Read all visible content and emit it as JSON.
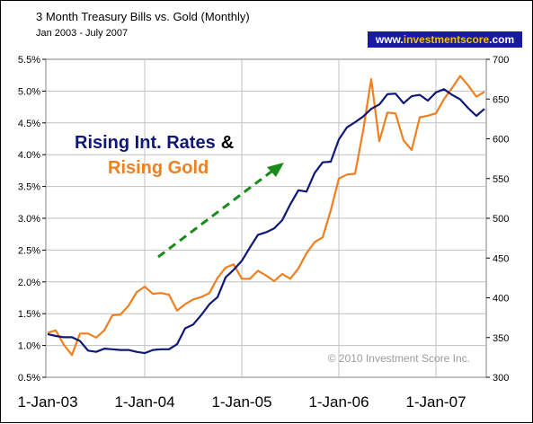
{
  "chart_data": {
    "type": "line",
    "title": "3 Month Treasury Bills vs. Gold (Monthly)",
    "subtitle": "Jan 2003 - July 2007",
    "source_badge": {
      "prefix": "www.",
      "brand": "investmentscore",
      "suffix": ".com"
    },
    "annotations": {
      "rates": "Rising Int. Rates",
      "amp": "&",
      "gold": "Rising Gold",
      "copyright": "© 2010 Investment Score Inc."
    },
    "colors": {
      "treasury": "#0e1877",
      "gold": "#f07f1f",
      "arrow": "#1a8a1a",
      "badge_bg": "#1a1aa0"
    },
    "x_tick_labels": [
      "1-Jan-03",
      "1-Jan-04",
      "1-Jan-05",
      "1-Jan-06",
      "1-Jan-07"
    ],
    "y_left": {
      "min": 0.5,
      "max": 5.5,
      "ticks": [
        "0.5%",
        "1.0%",
        "1.5%",
        "2.0%",
        "2.5%",
        "3.0%",
        "3.5%",
        "4.0%",
        "4.5%",
        "5.0%",
        "5.5%"
      ]
    },
    "y_right": {
      "min": 300,
      "max": 700,
      "ticks": [
        "300",
        "350",
        "400",
        "450",
        "500",
        "550",
        "600",
        "650",
        "700"
      ]
    },
    "grid": true,
    "legend": "none",
    "series": [
      {
        "axis": "left",
        "values": [
          1.18,
          1.15,
          1.13,
          1.13,
          1.07,
          0.92,
          0.9,
          0.95,
          0.94,
          0.93,
          0.93,
          0.9,
          0.88,
          0.93,
          0.94,
          0.94,
          1.02,
          1.27,
          1.33,
          1.48,
          1.65,
          1.76,
          2.07,
          2.19,
          2.33,
          2.54,
          2.74,
          2.78,
          2.84,
          2.97,
          3.22,
          3.44,
          3.42,
          3.71,
          3.88,
          3.89,
          4.24,
          4.43,
          4.51,
          4.6,
          4.72,
          4.79,
          4.95,
          4.96,
          4.81,
          4.92,
          4.94,
          4.85,
          4.98,
          5.03,
          4.94,
          4.87,
          4.73,
          4.61,
          4.72
        ]
      },
      {
        "axis": "right",
        "values": [
          356,
          359,
          341,
          328,
          355,
          355,
          350,
          359,
          378,
          379,
          390,
          407,
          414,
          405,
          406,
          404,
          384,
          392,
          398,
          401,
          406,
          425,
          438,
          442,
          424,
          424,
          434,
          428,
          421,
          430,
          424,
          437,
          456,
          470,
          476,
          510,
          550,
          555,
          556,
          610,
          675,
          597,
          633,
          632,
          598,
          586,
          627,
          629,
          632,
          650,
          664,
          679,
          667,
          653,
          659
        ]
      }
    ]
  }
}
